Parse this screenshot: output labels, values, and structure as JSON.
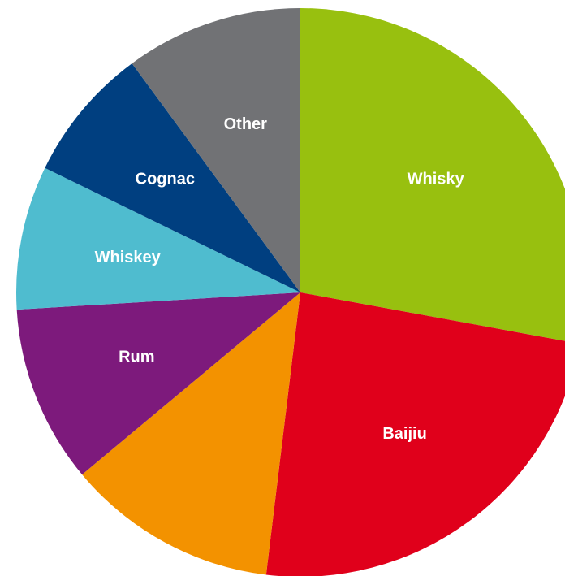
{
  "chart_data": {
    "type": "pie",
    "title": "",
    "slices": [
      {
        "label": "Whisky",
        "value": 29.0,
        "color": "#98c00f"
      },
      {
        "label": "Baijiu",
        "value": 25.0,
        "color": "#e0001b"
      },
      {
        "label": "",
        "value": 12.5,
        "color": "#f39200"
      },
      {
        "label": "Rum",
        "value": 10.5,
        "color": "#7d1a7c"
      },
      {
        "label": "Whiskey",
        "value": 8.5,
        "color": "#4fbccf"
      },
      {
        "label": "Cognac",
        "value": 8.0,
        "color": "#003f80"
      },
      {
        "label": "Other",
        "value": 10.5,
        "color": "#717275"
      }
    ],
    "start_angle_deg": 0,
    "direction": "clockwise",
    "legend": "none",
    "labels_inside": true
  }
}
